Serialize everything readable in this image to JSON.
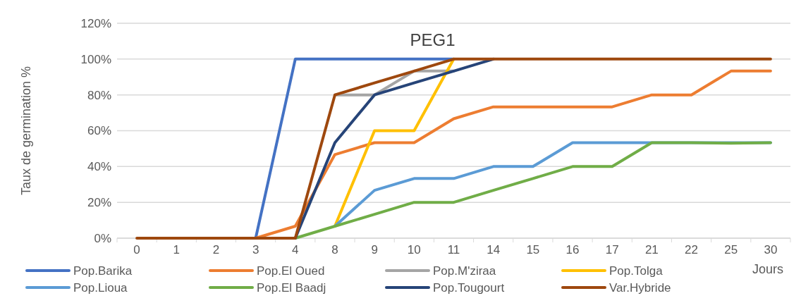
{
  "chart_data": {
    "type": "line",
    "title": "PEG1",
    "xlabel": "Jours",
    "ylabel": "Taux de germination %",
    "categories": [
      "0",
      "1",
      "2",
      "3",
      "4",
      "8",
      "9",
      "10",
      "11",
      "14",
      "15",
      "16",
      "17",
      "21",
      "22",
      "25",
      "30"
    ],
    "ylim": [
      0,
      120
    ],
    "yticks": [
      {
        "value": 0,
        "label": "0%"
      },
      {
        "value": 20,
        "label": "20%"
      },
      {
        "value": 40,
        "label": "40%"
      },
      {
        "value": 60,
        "label": "60%"
      },
      {
        "value": 80,
        "label": "80%"
      },
      {
        "value": 100,
        "label": "100%"
      },
      {
        "value": 120,
        "label": "120%"
      }
    ],
    "grid": "y",
    "legend": "bottom",
    "marker": "none",
    "line_style": "solid",
    "series": [
      {
        "name": "Pop.Barika",
        "color": "#4472c4",
        "values": [
          null,
          null,
          null,
          0,
          100,
          100,
          100,
          100,
          100,
          null,
          null,
          null,
          null,
          null,
          null,
          null,
          null
        ]
      },
      {
        "name": "Pop.El Oued",
        "color": "#ed7d31",
        "values": [
          null,
          null,
          null,
          0,
          6.7,
          46.7,
          53.3,
          53.3,
          66.7,
          73.3,
          73.3,
          73.3,
          73.3,
          80,
          80,
          93.3,
          93.3
        ]
      },
      {
        "name": "Pop.M'ziraa",
        "color": "#a5a5a5",
        "values": [
          null,
          null,
          null,
          null,
          null,
          80,
          80,
          93.3,
          93.3,
          null,
          null,
          null,
          null,
          null,
          null,
          null,
          null
        ]
      },
      {
        "name": "Pop.Tolga",
        "color": "#ffc000",
        "values": [
          null,
          null,
          null,
          null,
          null,
          6.7,
          60,
          60,
          100,
          null,
          null,
          null,
          null,
          null,
          null,
          null,
          null
        ]
      },
      {
        "name": "Pop.Lioua",
        "color": "#5b9bd5",
        "values": [
          null,
          null,
          null,
          null,
          null,
          6.7,
          26.7,
          33.3,
          33.3,
          40,
          40,
          53.3,
          53.3,
          53.3,
          53.3,
          53.3,
          53.3
        ]
      },
      {
        "name": "Pop.El Baadj",
        "color": "#70ad47",
        "values": [
          null,
          null,
          null,
          null,
          0,
          6.7,
          13.3,
          20,
          20,
          26.7,
          33.3,
          40,
          40,
          53.3,
          53.3,
          53,
          53.3
        ]
      },
      {
        "name": "Pop.Tougourt",
        "color": "#264478",
        "values": [
          null,
          null,
          null,
          null,
          0,
          53.3,
          80,
          86.7,
          93.3,
          100,
          null,
          null,
          null,
          null,
          null,
          null,
          null
        ]
      },
      {
        "name": "Var.Hybride",
        "color": "#9e480e",
        "values": [
          0,
          0,
          0,
          0,
          0,
          80,
          86.7,
          93.3,
          100,
          100,
          100,
          100,
          100,
          100,
          100,
          100,
          100
        ]
      }
    ]
  }
}
